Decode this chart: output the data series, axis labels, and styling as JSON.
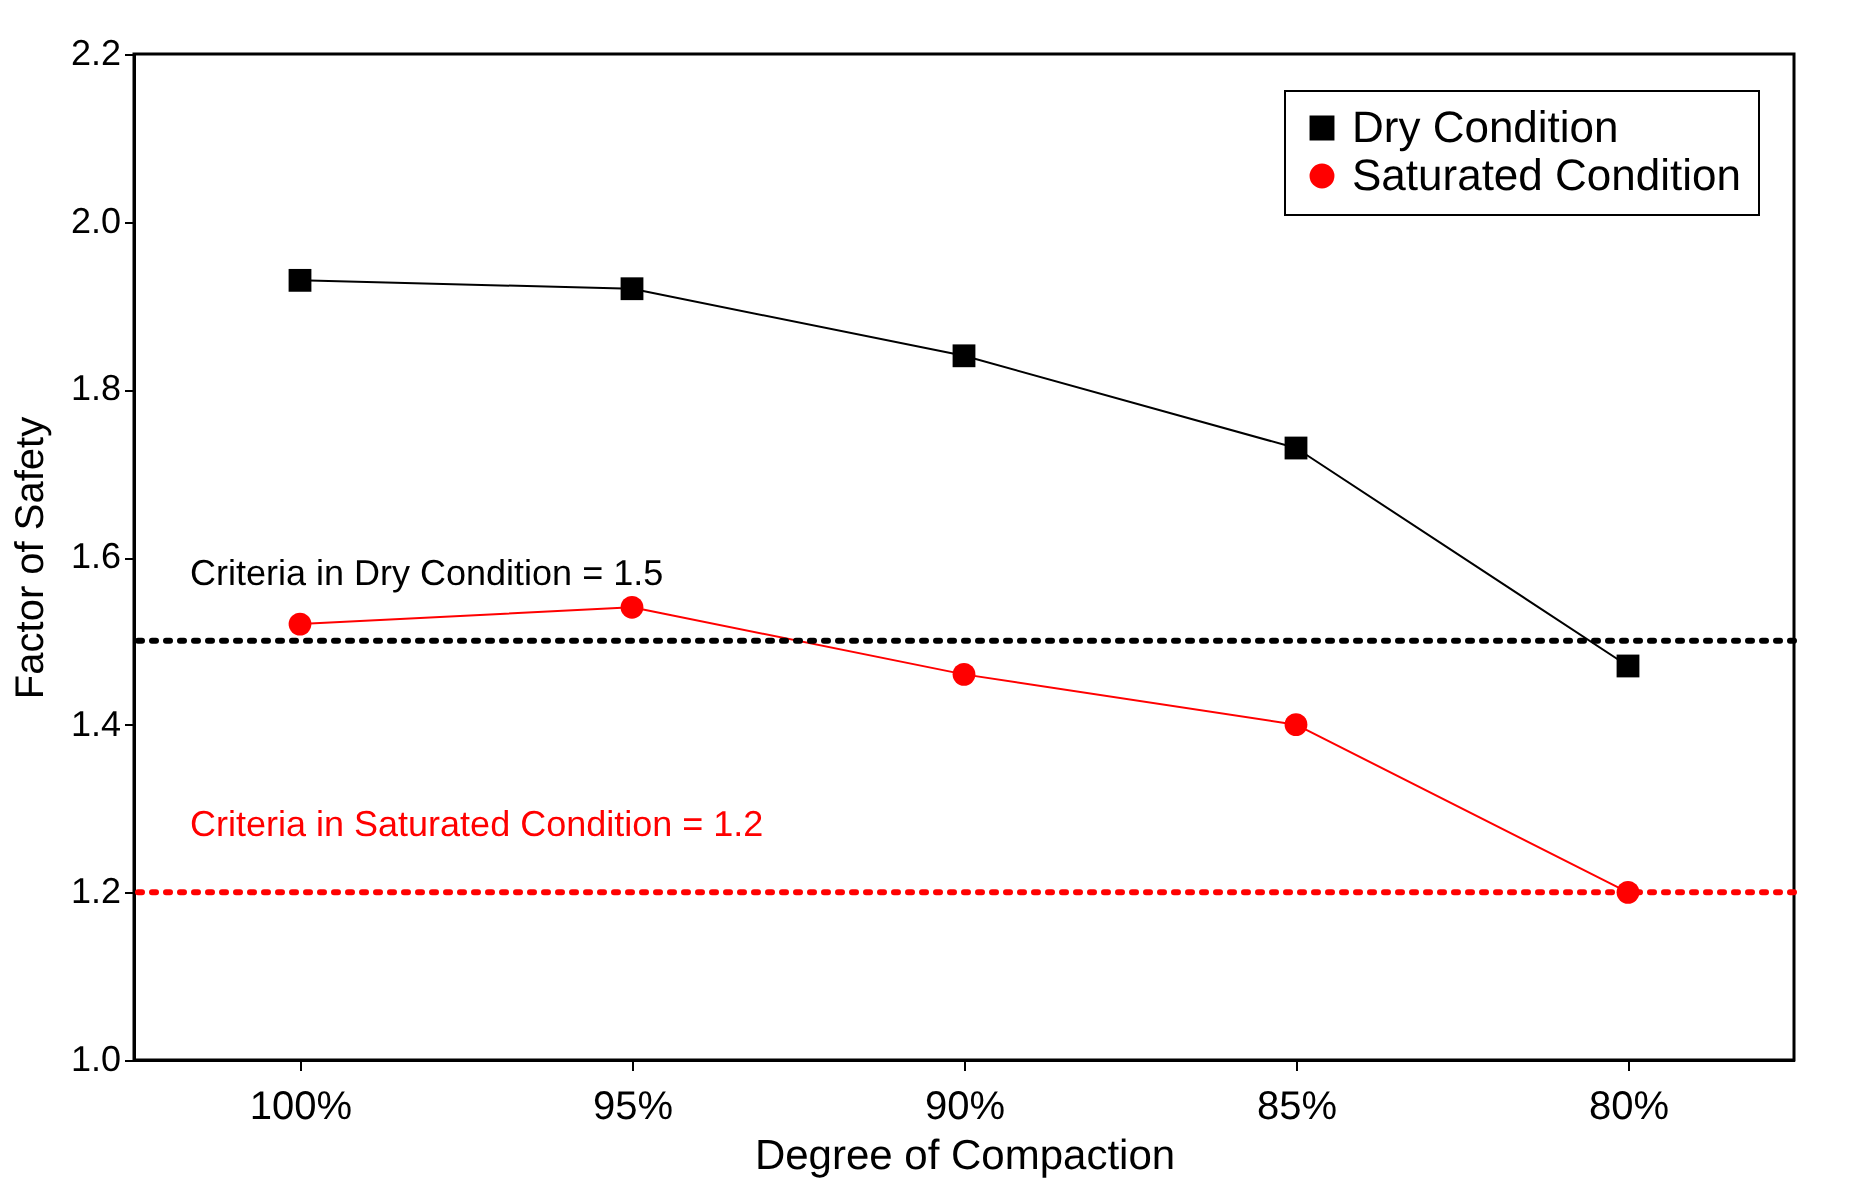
{
  "chart_data": {
    "type": "line",
    "xlabel": "Degree of Compaction",
    "ylabel": "Factor of Safety",
    "categories": [
      "100%",
      "95%",
      "90%",
      "85%",
      "80%"
    ],
    "series": [
      {
        "name": "Dry Condition",
        "color": "#000000",
        "marker": "square",
        "values": [
          1.93,
          1.92,
          1.84,
          1.73,
          1.47
        ]
      },
      {
        "name": "Saturated Condition",
        "color": "#ff0000",
        "marker": "circle",
        "values": [
          1.52,
          1.54,
          1.46,
          1.4,
          1.2
        ]
      }
    ],
    "ylim": [
      1.0,
      2.2
    ],
    "yticks": [
      {
        "value": 1.0,
        "label": "1.0"
      },
      {
        "value": 1.2,
        "label": "1.2"
      },
      {
        "value": 1.4,
        "label": "1.4"
      },
      {
        "value": 1.6,
        "label": "1.6"
      },
      {
        "value": 1.8,
        "label": "1.8"
      },
      {
        "value": 2.0,
        "label": "2.0"
      },
      {
        "value": 2.2,
        "label": "2.2"
      }
    ],
    "ref_lines": [
      {
        "axis": "y",
        "value": 1.5,
        "label": "Criteria in Dry Condition = 1.5",
        "color": "#000000",
        "line_style": "dotted"
      },
      {
        "axis": "y",
        "value": 1.2,
        "label": "Criteria in Saturated Condition = 1.2",
        "color": "#ff0000",
        "line_style": "dotted"
      }
    ],
    "legend": "top right",
    "grid": false,
    "line_style": "solid"
  }
}
